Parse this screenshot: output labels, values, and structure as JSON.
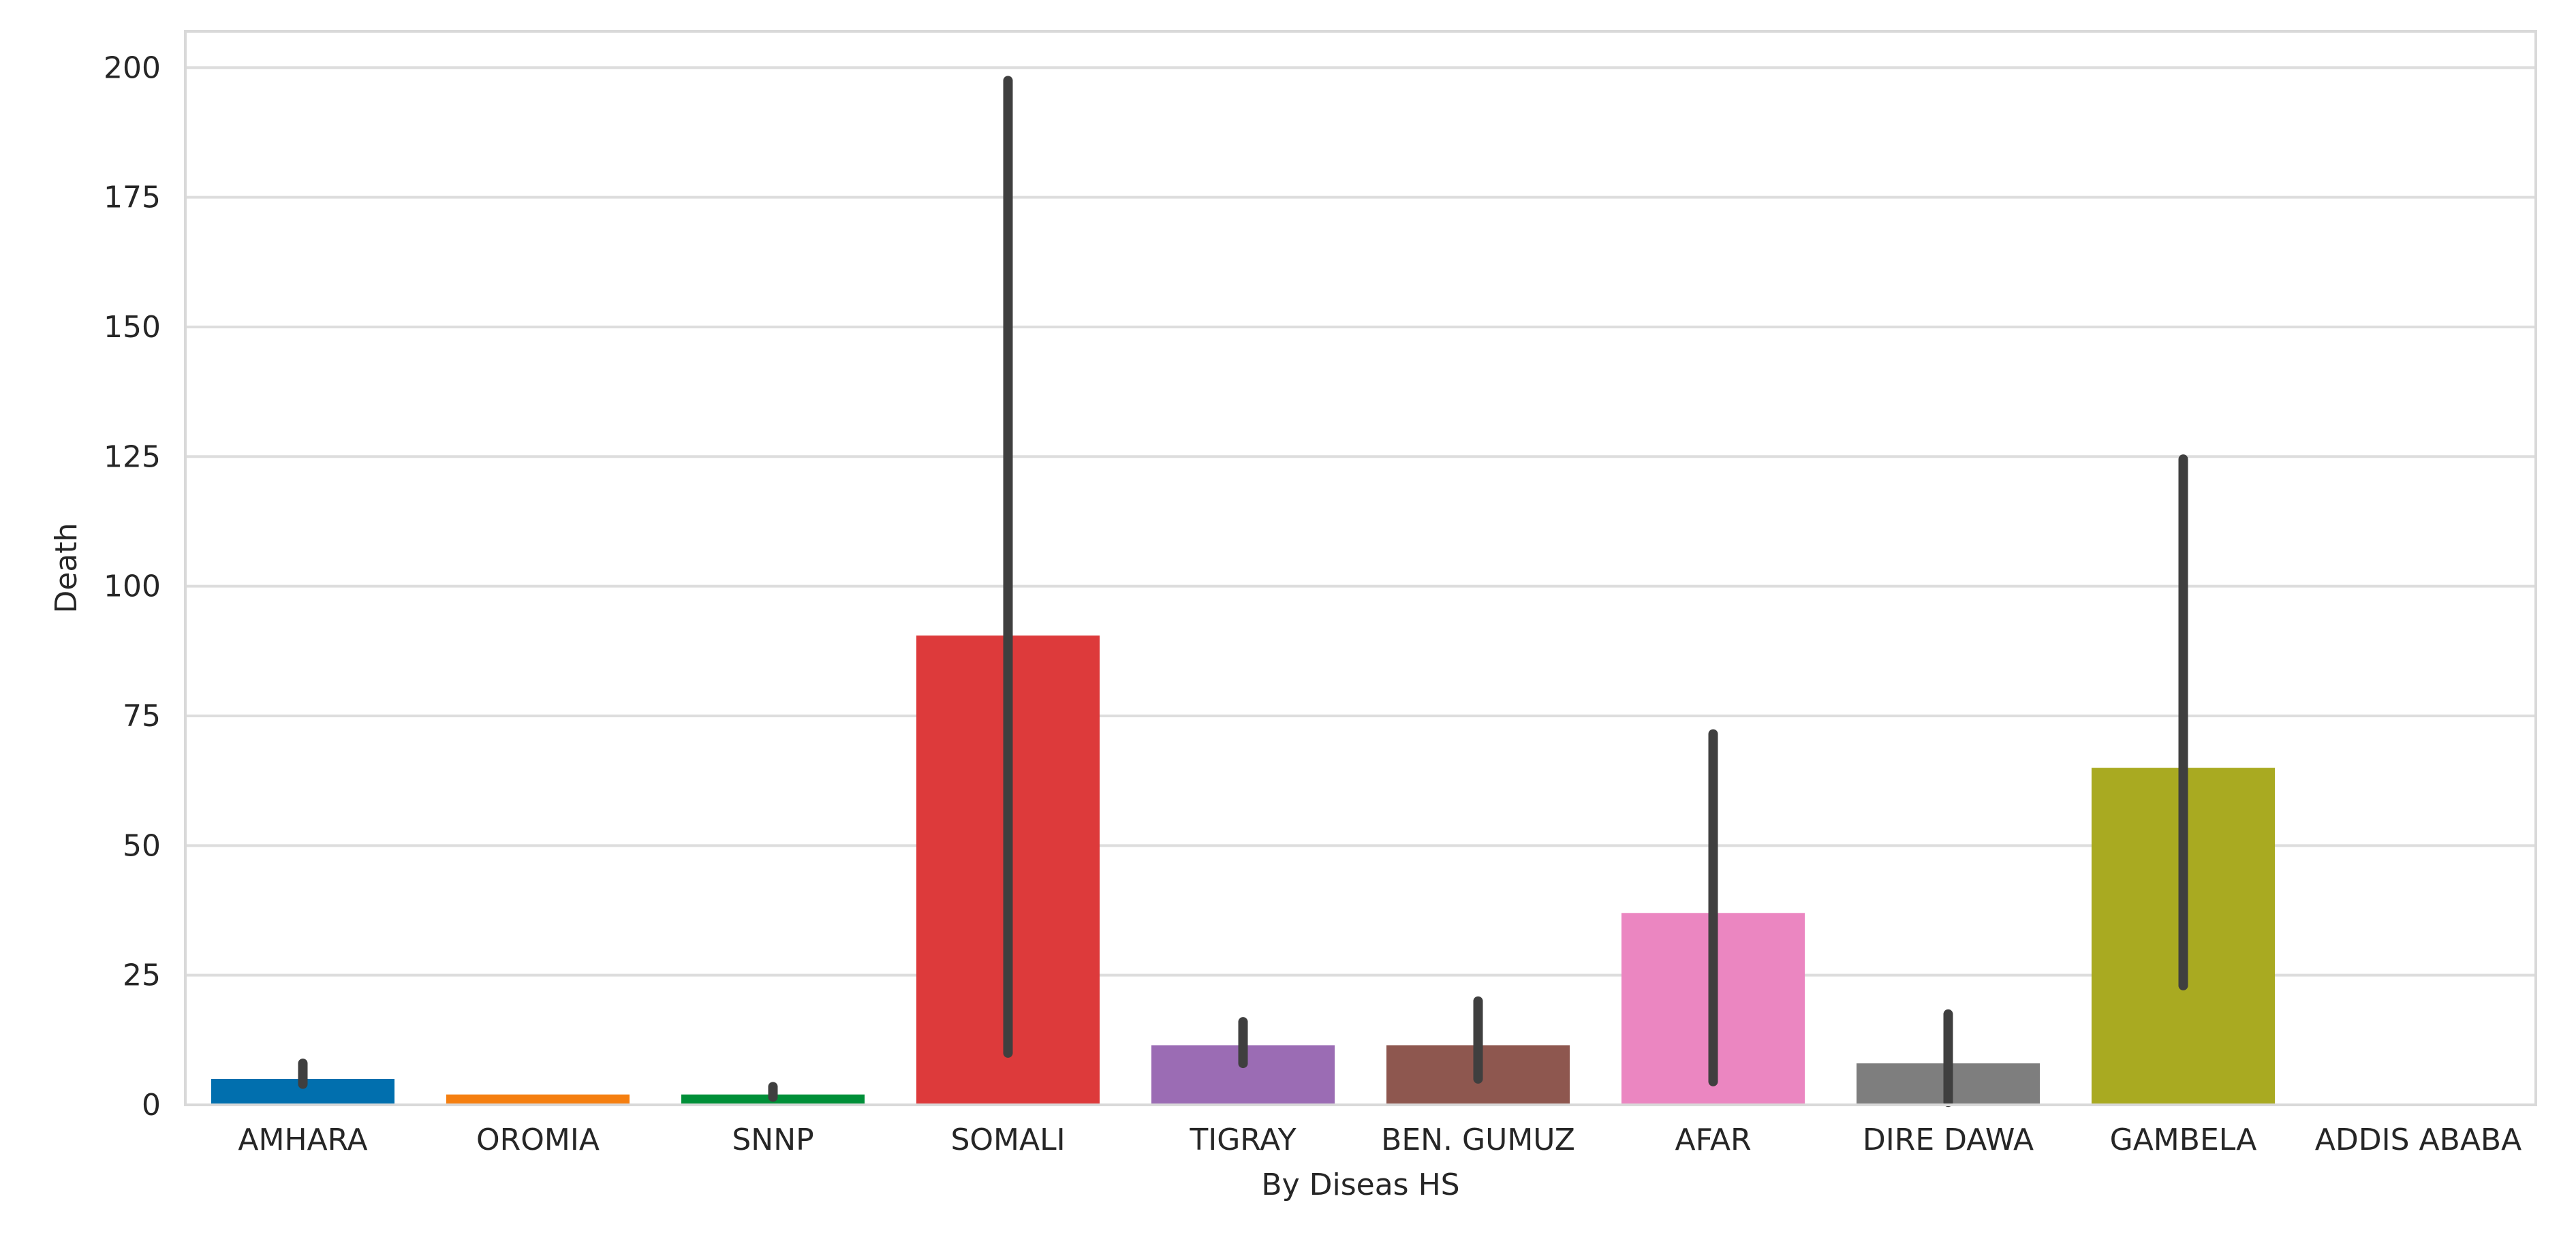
{
  "chart_data": {
    "type": "bar",
    "title": "",
    "xlabel": "By Diseas HS",
    "ylabel": "Death",
    "ylim": [
      0,
      207
    ],
    "yticks": [
      0,
      25,
      50,
      75,
      100,
      125,
      150,
      175,
      200
    ],
    "grid": "horizontal",
    "legend": "none",
    "categories": [
      "AMHARA",
      "OROMIA",
      "SNNP",
      "SOMALI",
      "TIGRAY",
      "BEN. GUMUZ",
      "AFAR",
      "DIRE DAWA",
      "GAMBELA",
      "ADDIS ABABA"
    ],
    "values": [
      5,
      2,
      2,
      90.5,
      11.5,
      11.5,
      37,
      8,
      65,
      0
    ],
    "error_low": [
      4,
      2,
      1.5,
      10,
      8,
      5,
      4.5,
      0.5,
      23,
      0
    ],
    "error_high": [
      8,
      2,
      3.5,
      197.5,
      16,
      20,
      71.5,
      17.5,
      124.5,
      0
    ],
    "colors": [
      "#0173b2",
      "#de8f05",
      "#029e73",
      "#d55e00",
      "#cc78bc",
      "#ca9161",
      "#fbafe4",
      "#949494",
      "#ece133",
      "#56b4e9"
    ],
    "bar_colors": [
      "#016FAE",
      "#F57F10",
      "#008F38",
      "#DD3A3B",
      "#9B6CB4",
      "#8E574F",
      "#EB86C1",
      "#7E7E7E",
      "#A9AA21",
      "#56b4e9"
    ],
    "error_color": "#3f3f3f",
    "frame_color": "#d9d9d9",
    "grid_color": "#dddddd"
  }
}
